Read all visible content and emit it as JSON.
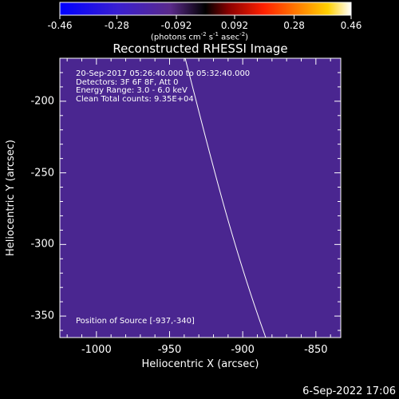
{
  "colorbar": {
    "ticks": [
      "-0.46",
      "-0.28",
      "-0.092",
      "0.092",
      "0.28",
      "0.46"
    ],
    "tick_values": [
      -0.46,
      -0.28,
      -0.092,
      0.092,
      0.28,
      0.46
    ],
    "range": [
      -0.46,
      0.46
    ],
    "units_text": "(photons cm",
    "units_exp1": "-2",
    "units_mid": " s",
    "units_exp2": "-1",
    "units_end": " asec",
    "units_exp3": "-2",
    "units_close": ")"
  },
  "image": {
    "title": "Reconstructed RHESSI Image",
    "info_lines": [
      "20-Sep-2017 05:26:40.000 to 05:32:40.000",
      "Detectors: 3F 6F 8F, Att 0",
      "Energy Range: 3.0 - 6.0 keV",
      "Clean     Total counts: 9.35E+04"
    ],
    "position_text": "Position of Source [-937,-340]",
    "xlabel": "Heliocentric X (arcsec)",
    "ylabel": "Heliocentric Y (arcsec)",
    "x_ticks": [
      "-1000",
      "-950",
      "-900",
      "-850"
    ],
    "x_tick_values": [
      -1000,
      -950,
      -900,
      -850
    ],
    "y_ticks": [
      "-200",
      "-250",
      "-300",
      "-350"
    ],
    "y_tick_values": [
      -200,
      -250,
      -300,
      -350
    ],
    "xlim": [
      -1025,
      -833
    ],
    "ylim": [
      -365,
      -170
    ],
    "colors": {
      "hot": "#ffff80",
      "cold": "#2020ff",
      "limb": "#ffffff"
    }
  },
  "footer": {
    "timestamp": "6-Sep-2022 17:06"
  }
}
